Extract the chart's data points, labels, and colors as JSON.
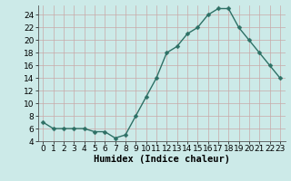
{
  "x": [
    0,
    1,
    2,
    3,
    4,
    5,
    6,
    7,
    8,
    9,
    10,
    11,
    12,
    13,
    14,
    15,
    16,
    17,
    18,
    19,
    20,
    21,
    22,
    23
  ],
  "y": [
    7,
    6,
    6,
    6,
    6,
    5.5,
    5.5,
    4.5,
    5,
    8,
    11,
    14,
    18,
    19,
    21,
    22,
    24,
    25,
    25,
    22,
    20,
    18,
    16,
    14
  ],
  "line_color": "#2d7065",
  "marker": "D",
  "marker_size": 2.5,
  "bg_color": "#cceae8",
  "grid_color": "#b0d0ce",
  "xlabel": "Humidex (Indice chaleur)",
  "xlim": [
    -0.5,
    23.5
  ],
  "ylim": [
    4,
    25.5
  ],
  "yticks": [
    4,
    6,
    8,
    10,
    12,
    14,
    16,
    18,
    20,
    22,
    24
  ],
  "xticks": [
    0,
    1,
    2,
    3,
    4,
    5,
    6,
    7,
    8,
    9,
    10,
    11,
    12,
    13,
    14,
    15,
    16,
    17,
    18,
    19,
    20,
    21,
    22,
    23
  ],
  "tick_fontsize": 6.5,
  "label_fontsize": 7.5
}
